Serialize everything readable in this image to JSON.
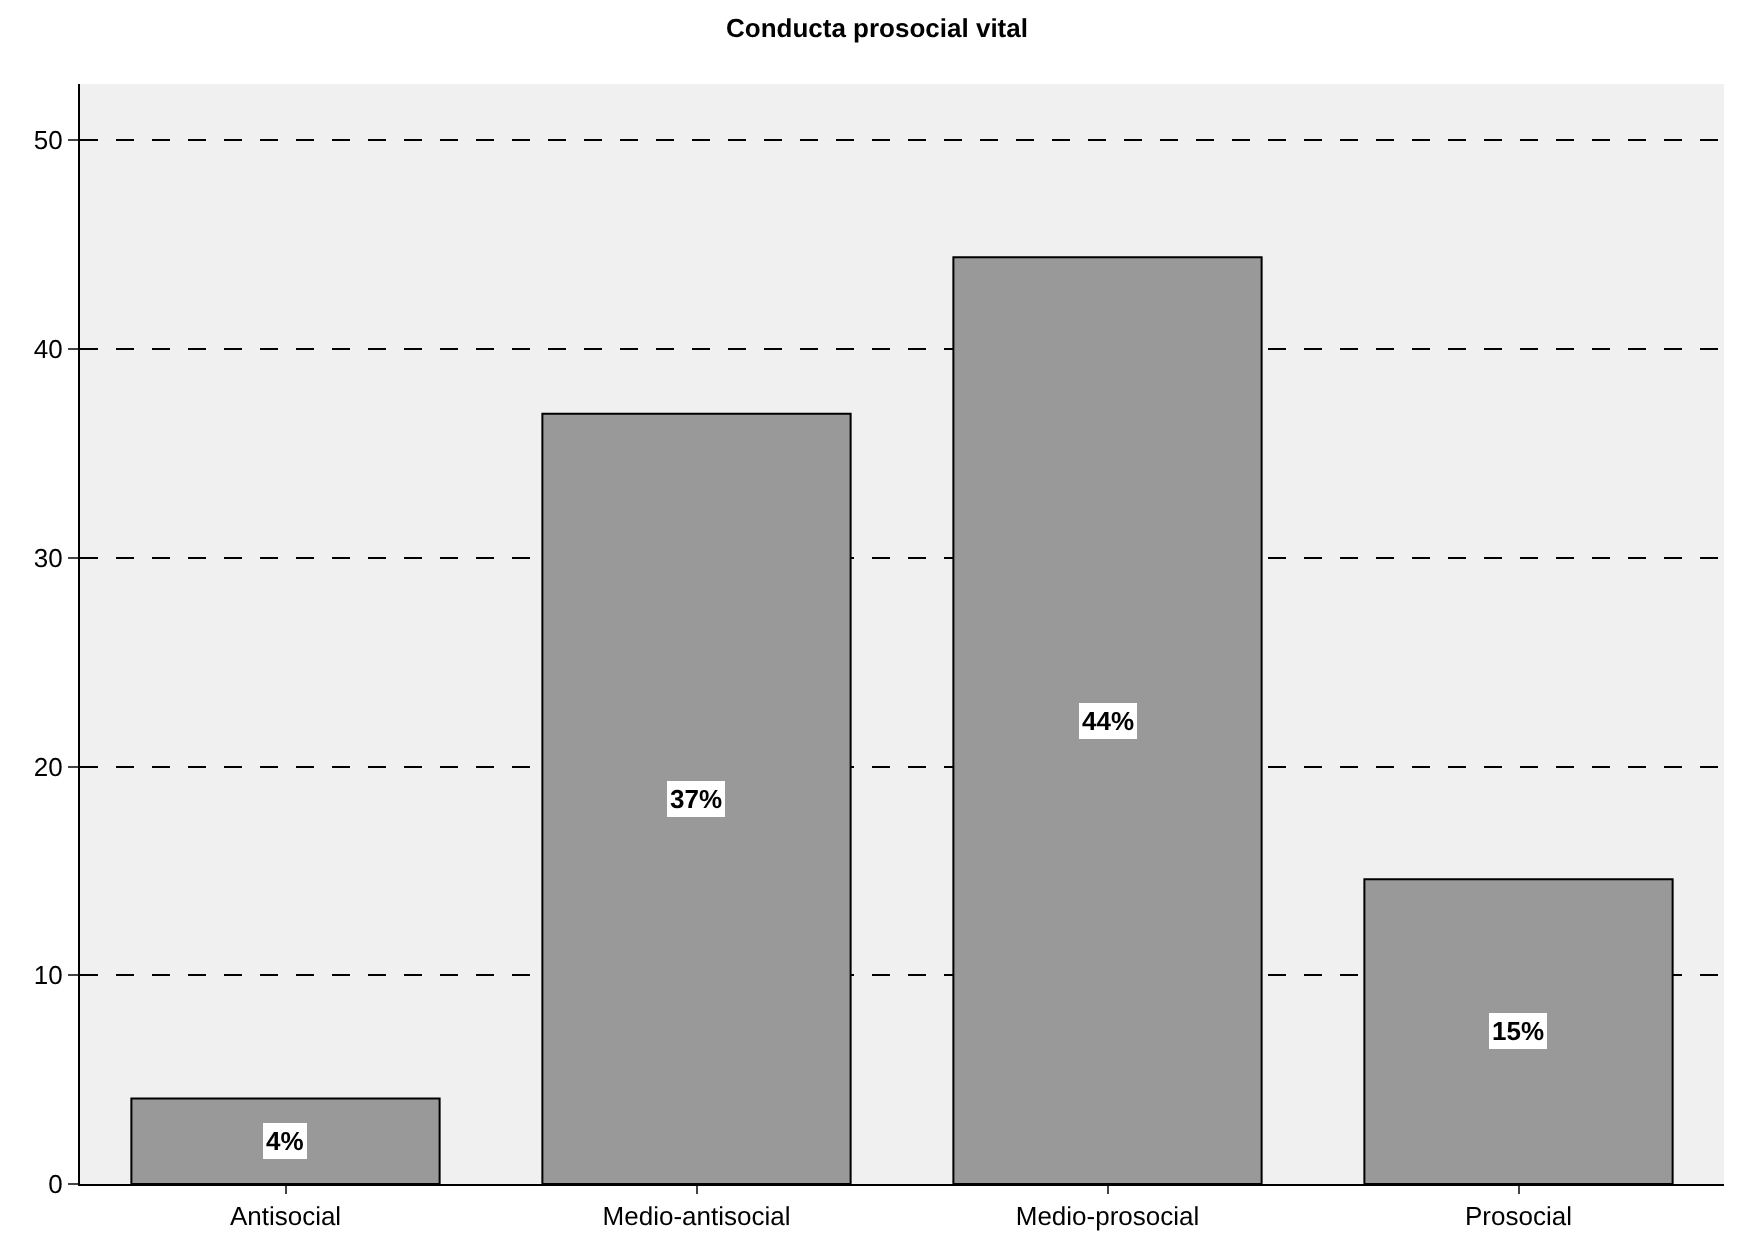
{
  "chart_data": {
    "type": "bar",
    "title": "Conducta prosocial vital",
    "categories": [
      "Antisocial",
      "Medio-antisocial",
      "Medio-prosocial",
      "Prosocial"
    ],
    "values": [
      4.1,
      36.9,
      44.4,
      14.6
    ],
    "value_labels": [
      "4%",
      "37%",
      "44%",
      "15%"
    ],
    "color": "#999999",
    "ylim": [
      0,
      52.7
    ],
    "yticks": [
      0,
      10,
      20,
      30,
      40,
      50
    ],
    "grid": "y"
  }
}
